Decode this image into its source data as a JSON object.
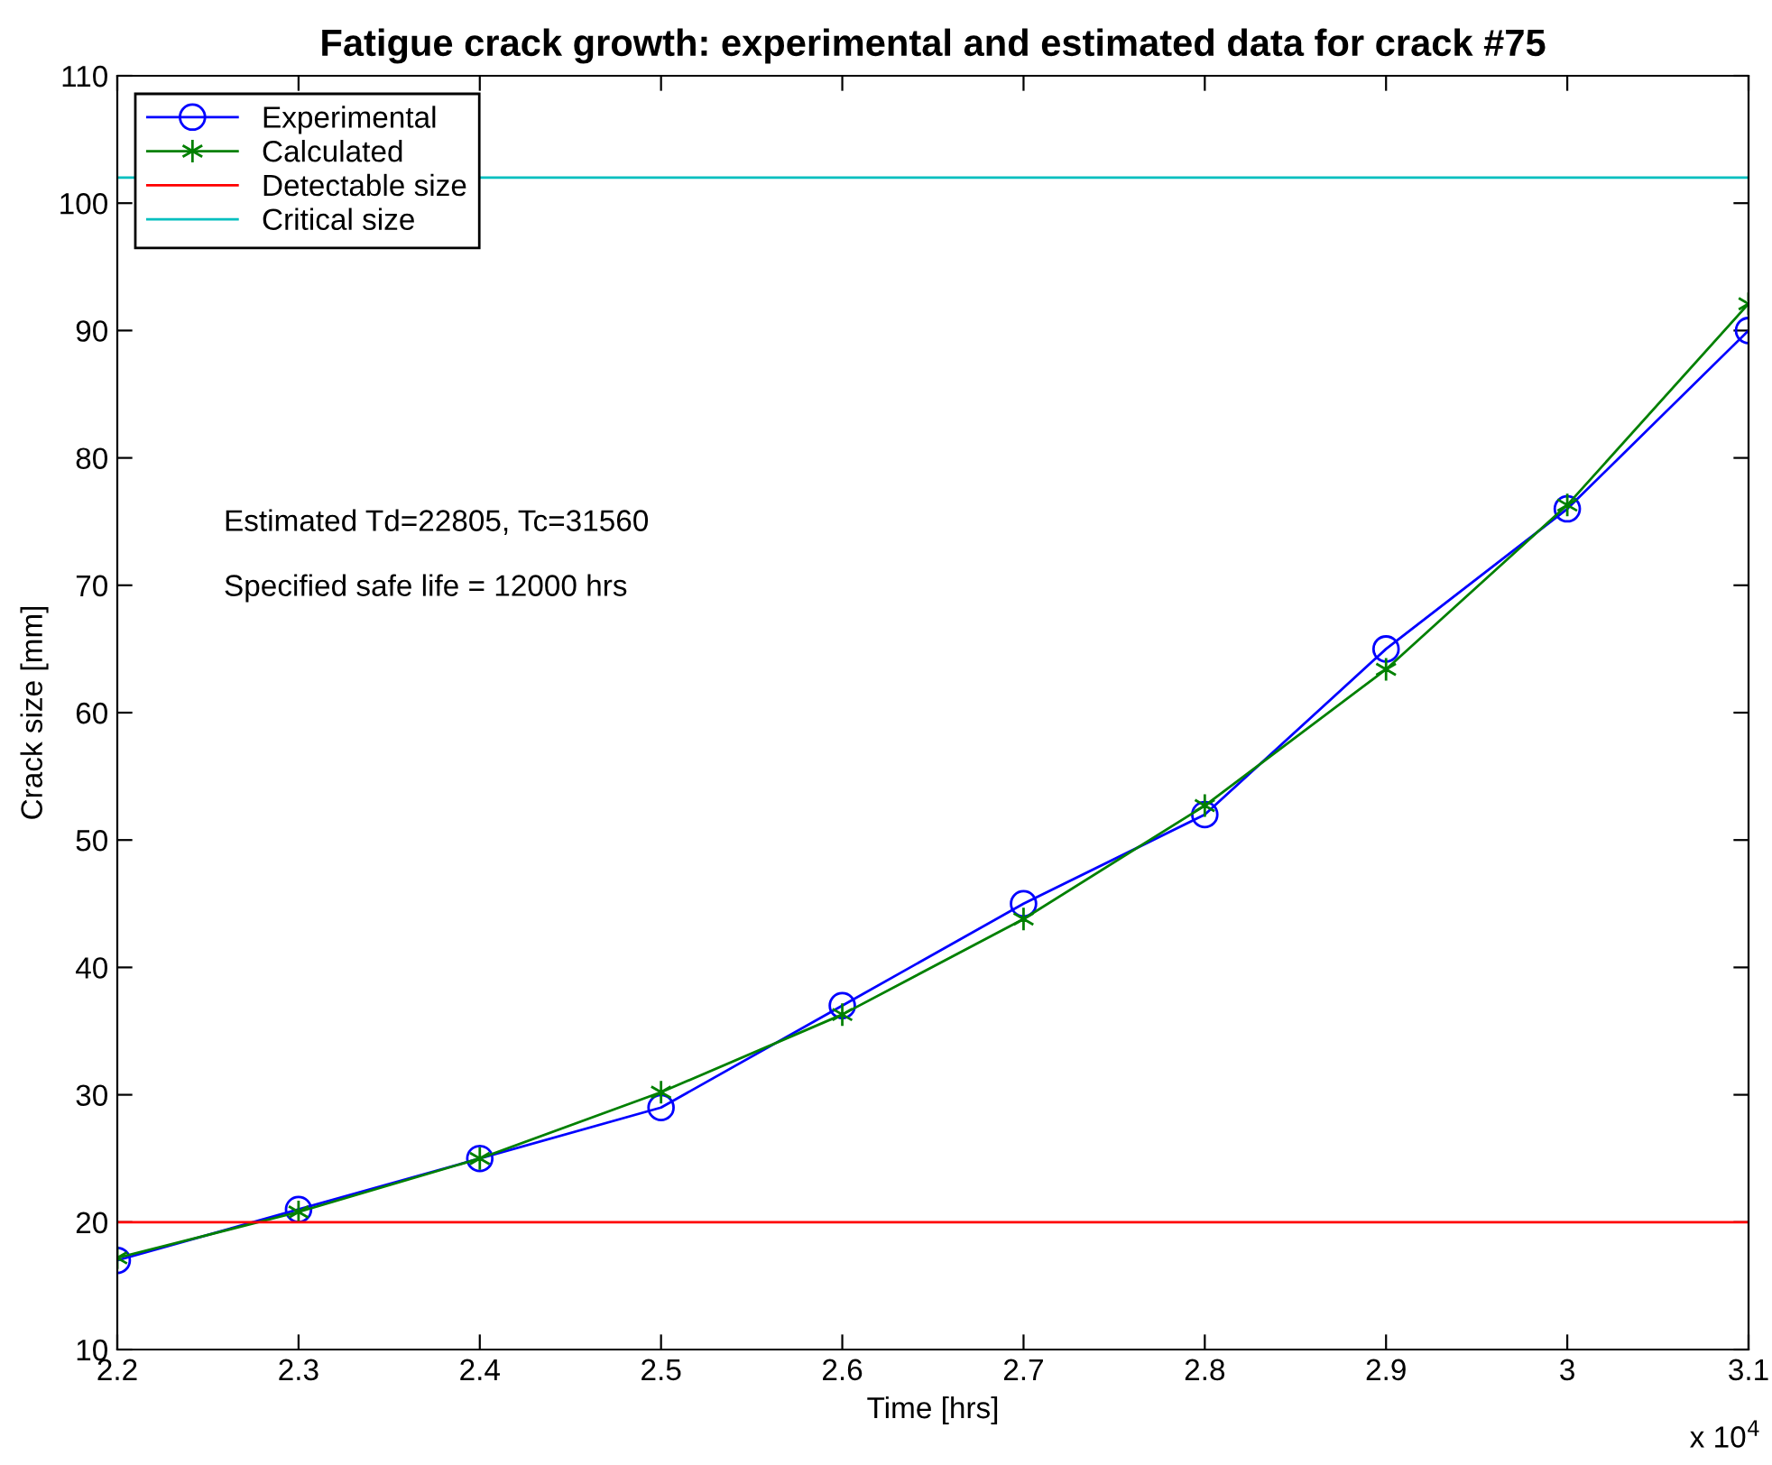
{
  "chart_data": {
    "type": "line",
    "title": "Fatigue crack growth: experimental and estimated data for crack #75",
    "xlabel": "Time [hrs]",
    "ylabel": "Crack size [mm]",
    "x": [
      2.2,
      2.3,
      2.4,
      2.5,
      2.6,
      2.7,
      2.8,
      2.9,
      3,
      3.1
    ],
    "series": [
      {
        "name": "Experimental",
        "color": "#0000ff",
        "marker": "circle",
        "values": [
          17,
          21,
          25,
          29,
          37,
          45,
          52,
          65,
          76,
          90
        ]
      },
      {
        "name": "Calculated",
        "color": "#008000",
        "marker": "cross",
        "values": [
          17.2,
          20.8,
          25,
          30.2,
          36.3,
          43.8,
          52.7,
          63.4,
          76.3,
          92.1
        ]
      }
    ],
    "ref_lines": [
      {
        "axis": "y",
        "value": 20,
        "label": "Detectable size",
        "color": "#ff0000"
      },
      {
        "axis": "y",
        "value": 102,
        "label": "Critical size",
        "color": "#00bfbf"
      }
    ],
    "annotations": [
      "Estimated Td=22805, Tc=31560",
      "Specified safe life = 12000 hrs",
      "x 10$^{4}$"
    ],
    "xlim": [
      2.2,
      3.1
    ],
    "xticks": [
      2.2,
      2.3,
      2.4,
      2.5,
      2.6,
      2.7,
      2.8,
      2.9,
      3,
      3.1
    ],
    "ylim": [
      10,
      110
    ],
    "yticks": [
      10,
      20,
      30,
      40,
      50,
      60,
      70,
      80,
      90,
      100,
      110
    ],
    "grid": false,
    "legend": "top left",
    "line_style": "solid"
  }
}
